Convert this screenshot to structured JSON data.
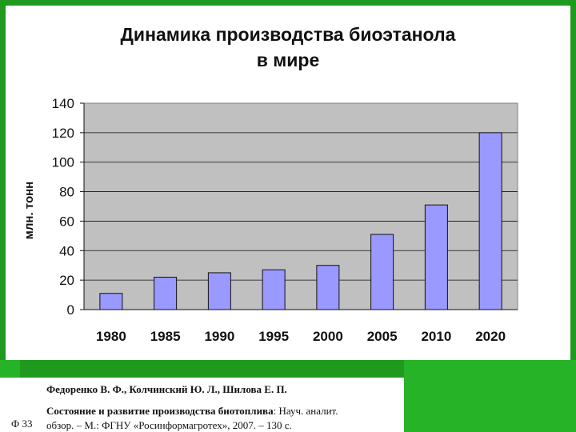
{
  "chart_data": {
    "type": "bar",
    "title_line1": "Динамика производства биоэтанола",
    "title_line2": "в мире",
    "ylabel": "млн. тонн",
    "xlabel": "",
    "categories": [
      "1980",
      "1985",
      "1990",
      "1995",
      "2000",
      "2005",
      "2010",
      "2020"
    ],
    "values": [
      11,
      22,
      25,
      27,
      30,
      51,
      71,
      120
    ],
    "ylim": [
      0,
      140
    ],
    "yticks": [
      0,
      20,
      40,
      60,
      80,
      100,
      120,
      140
    ],
    "grid": true,
    "legend": "none",
    "bar_color": "#9999ff",
    "plot_bg": "#c0c0c0"
  },
  "caption": {
    "authors": "Федоренко В. Ф., Колчинский Ю. Л., Шилова Е. П.",
    "title_bold": "Состояние и развитие производства биотоплива",
    "title_rest": ": Науч. аналит.",
    "publisher": "обзор. – М.: ФГНУ «Росинформагротех», 2007. – 130 с.",
    "page_ref": "Ф 33"
  }
}
